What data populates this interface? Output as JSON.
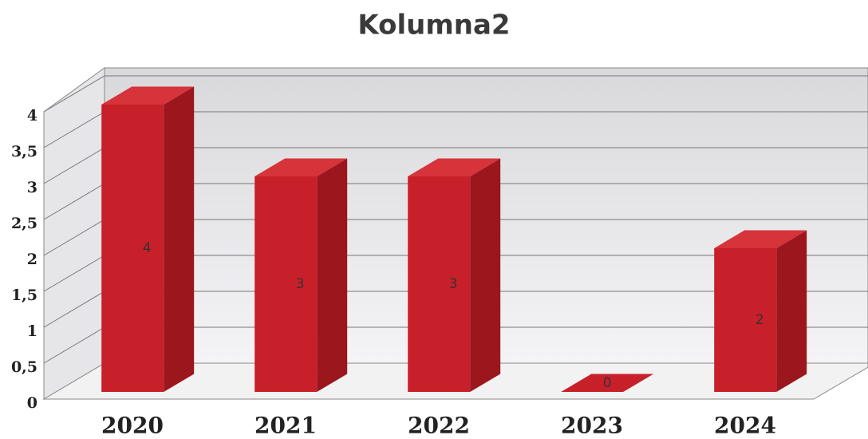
{
  "chart_data": {
    "type": "bar3d",
    "title": "Kolumna2",
    "categories": [
      "2020",
      "2021",
      "2022",
      "2023",
      "2024"
    ],
    "values": [
      4,
      3,
      3,
      0,
      2
    ],
    "color": "#c8202a",
    "ylim": [
      0,
      4
    ],
    "yticks": [
      0,
      {
        "value": 0.5,
        "label": "0,5"
      },
      1,
      {
        "value": 1.5,
        "label": "1,5"
      },
      2,
      {
        "value": 2.5,
        "label": "2,5"
      },
      3,
      {
        "value": 3.5,
        "label": "3,5"
      },
      4
    ],
    "grid": true
  }
}
